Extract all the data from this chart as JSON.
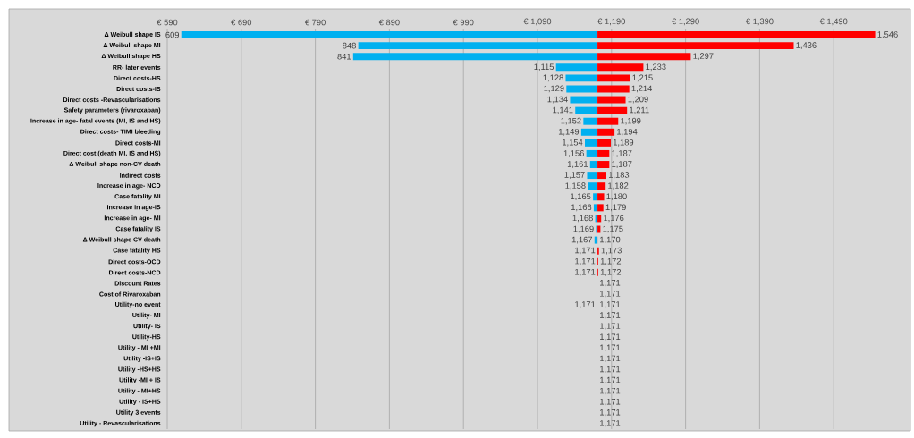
{
  "chart_data": {
    "type": "bar",
    "orientation": "horizontal",
    "grid": "x",
    "categories": [
      "Δ Weibull shape IS",
      "Δ Weibull shape MI",
      "Δ Weibull shape HS",
      "RR- later events",
      "Direct costs-HS",
      "Direct costs-IS",
      "Direct costs -Revascularisations",
      "Safety parameters (rivaroxaban)",
      "Increase in age- fatal events (MI, IS and HS)",
      "Direct costs- TIMI bleeding",
      "Direct costs-MI",
      "Direct cost (death MI, IS and HS)",
      "Δ Weibull shape non-CV death",
      "Indirect costs",
      "Increase in age- NCD",
      "Case fatality MI",
      "Increase in age-IS",
      "Increase in age- MI",
      "Case fatality IS",
      "Δ Weibull shape CV death",
      "Case fatality HS",
      "Direct costs-OCD",
      "Direct costs-NCD",
      "Discount Rates",
      "Cost of Rivaroxaban",
      "Utility-no event",
      "Utility- MI",
      "Utility- IS",
      "Utility-HS",
      "Utility - MI +MI",
      "Utility -IS+IS",
      "Utility -HS+HS",
      "Utility -MI + IS",
      "Utility - MI+HS",
      "Utility - IS+HS",
      "Utility 3 events",
      "Utility - Revascularisations"
    ],
    "xlim": [
      590,
      1590
    ],
    "xticks": [
      {
        "value": 590,
        "label": "€ 590"
      },
      {
        "value": 690,
        "label": "€ 690"
      },
      {
        "value": 790,
        "label": "€ 790"
      },
      {
        "value": 890,
        "label": "€ 890"
      },
      {
        "value": 990,
        "label": "€ 990"
      },
      {
        "value": 1090,
        "label": "€ 1,090"
      },
      {
        "value": 1190,
        "label": "€ 1,190"
      },
      {
        "value": 1290,
        "label": "€ 1,290"
      },
      {
        "value": 1390,
        "label": "€ 1,390"
      },
      {
        "value": 1490,
        "label": "€ 1,490"
      }
    ],
    "series": [
      {
        "color": "#00b0f0",
        "base": [
          1171,
          1171,
          1171,
          1171,
          1171,
          1171,
          1171,
          1171,
          1171,
          1171,
          1171,
          1171,
          1171,
          1171,
          1171,
          1171,
          1171,
          1171,
          1171,
          1171,
          null,
          null,
          null,
          null,
          null,
          null,
          null,
          null,
          null,
          null,
          null,
          null,
          null,
          null,
          null,
          null,
          null
        ],
        "values": [
          -562,
          -323,
          -330,
          -56,
          -43,
          -42,
          -37,
          -30,
          -19,
          -22,
          -17,
          -15,
          -10,
          -14,
          -13,
          -6,
          -5,
          -3,
          -2,
          -4,
          null,
          null,
          null,
          null,
          null,
          null,
          null,
          null,
          null,
          null,
          null,
          null,
          null,
          null,
          null,
          null,
          null
        ],
        "value_labels": [
          "609",
          "848",
          "841",
          "1,115",
          "1,128",
          "1,129",
          "1,134",
          "1,141",
          "1,152",
          "1,149",
          "1,154",
          "1,156",
          "1,161",
          "1,157",
          "1,158",
          "1,165",
          "1,166",
          "1,168",
          "1,169",
          "1,167",
          "1,171",
          "1,171",
          "1,171",
          null,
          null,
          "1,171",
          null,
          null,
          null,
          null,
          null,
          null,
          null,
          null,
          null,
          null,
          null
        ]
      },
      {
        "color": "#ff0000",
        "base": [
          1171,
          1171,
          1171,
          1171,
          1171,
          1171,
          1171,
          1171,
          1171,
          1171,
          1171,
          1171,
          1171,
          1171,
          1171,
          1171,
          1171,
          1171,
          1171,
          1171,
          1171,
          1171,
          1171,
          null,
          null,
          null,
          null,
          null,
          null,
          null,
          null,
          null,
          null,
          null,
          null,
          null,
          null
        ],
        "values": [
          375,
          265,
          126,
          62,
          44,
          43,
          38,
          40,
          28,
          23,
          18,
          16,
          16,
          12,
          11,
          9,
          8,
          5,
          4,
          -1,
          2,
          1,
          1,
          null,
          null,
          null,
          null,
          null,
          null,
          null,
          null,
          null,
          null,
          null,
          null,
          null,
          null
        ],
        "value_labels": [
          "1,546",
          "1,436",
          "1,297",
          "1,233",
          "1,215",
          "1,214",
          "1,209",
          "1,211",
          "1,199",
          "1,194",
          "1,189",
          "1,187",
          "1,187",
          "1,183",
          "1,182",
          "1,180",
          "1,179",
          "1,176",
          "1,175",
          "1,170",
          "1,173",
          "1,172",
          "1,172",
          "1,171",
          "1,171",
          "1,171",
          "1,171",
          "1,171",
          "1,171",
          "1,171",
          "1,171",
          "1,171",
          "1,171",
          "1,171",
          "1,171",
          "1,171",
          "1,171"
        ]
      }
    ]
  }
}
